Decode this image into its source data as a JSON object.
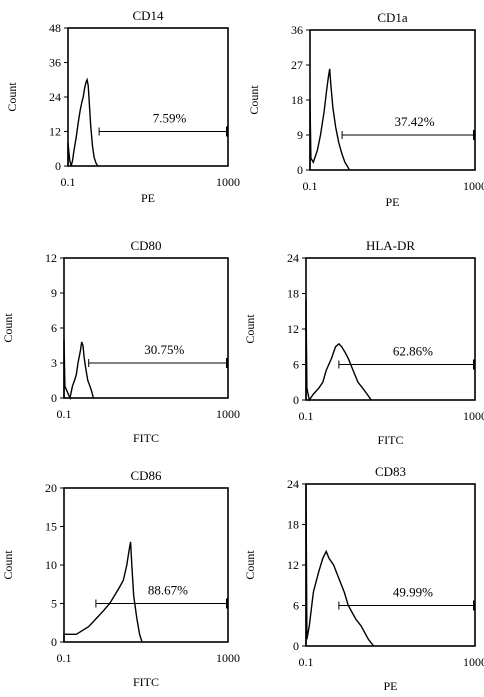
{
  "chart_data": [
    {
      "type": "histogram",
      "title": "CD14",
      "xlabel": "PE",
      "ylabel": "Count",
      "xscale": "log",
      "xlim": [
        0.1,
        1000
      ],
      "x_ticks": [
        "0.1",
        "1000"
      ],
      "ylim": [
        0,
        48
      ],
      "y_ticks": [
        "0",
        "12",
        "24",
        "36",
        "48"
      ],
      "gate": {
        "label": "7.59%",
        "from": 0.6,
        "to": 1000,
        "y": 12
      },
      "histogram": [
        [
          0.1,
          0
        ],
        [
          0.1,
          8
        ],
        [
          0.11,
          2
        ],
        [
          0.12,
          0
        ],
        [
          0.13,
          2
        ],
        [
          0.14,
          5
        ],
        [
          0.16,
          10
        ],
        [
          0.18,
          15
        ],
        [
          0.2,
          19
        ],
        [
          0.22,
          22
        ],
        [
          0.24,
          24
        ],
        [
          0.26,
          27
        ],
        [
          0.28,
          29
        ],
        [
          0.3,
          30
        ],
        [
          0.32,
          28
        ],
        [
          0.34,
          22
        ],
        [
          0.37,
          14
        ],
        [
          0.41,
          7
        ],
        [
          0.45,
          3
        ],
        [
          0.5,
          1
        ],
        [
          0.56,
          0
        ]
      ]
    },
    {
      "type": "histogram",
      "title": "CD1a",
      "xlabel": "PE",
      "ylabel": "Count",
      "xscale": "log",
      "xlim": [
        0.1,
        1000
      ],
      "x_ticks": [
        "0.1",
        "1000"
      ],
      "ylim": [
        0,
        36
      ],
      "y_ticks": [
        "0",
        "9",
        "18",
        "27",
        "36"
      ],
      "gate": {
        "label": "37.42%",
        "from": 0.6,
        "to": 1000,
        "y": 9
      },
      "histogram": [
        [
          0.1,
          0
        ],
        [
          0.1,
          18
        ],
        [
          0.105,
          3
        ],
        [
          0.12,
          2
        ],
        [
          0.15,
          5
        ],
        [
          0.18,
          9
        ],
        [
          0.22,
          15
        ],
        [
          0.25,
          20
        ],
        [
          0.28,
          24
        ],
        [
          0.3,
          26
        ],
        [
          0.32,
          22
        ],
        [
          0.36,
          16
        ],
        [
          0.42,
          11
        ],
        [
          0.5,
          7
        ],
        [
          0.6,
          4
        ],
        [
          0.7,
          2
        ],
        [
          0.8,
          1
        ],
        [
          0.9,
          0
        ]
      ]
    },
    {
      "type": "histogram",
      "title": "CD80",
      "xlabel": "FITC",
      "ylabel": "Count",
      "xscale": "log",
      "xlim": [
        0.1,
        1000
      ],
      "x_ticks": [
        "0.1",
        "1000"
      ],
      "ylim": [
        0,
        12
      ],
      "y_ticks": [
        "0",
        "3",
        "6",
        "9",
        "12"
      ],
      "gate": {
        "label": "30.75%",
        "from": 0.4,
        "to": 1000,
        "y": 3
      },
      "histogram": [
        [
          0.1,
          0
        ],
        [
          0.1,
          5
        ],
        [
          0.105,
          1
        ],
        [
          0.14,
          0
        ],
        [
          0.16,
          1
        ],
        [
          0.18,
          1.5
        ],
        [
          0.2,
          2
        ],
        [
          0.22,
          3
        ],
        [
          0.25,
          4
        ],
        [
          0.27,
          4.8
        ],
        [
          0.29,
          4.5
        ],
        [
          0.31,
          3.5
        ],
        [
          0.34,
          2.5
        ],
        [
          0.38,
          1.5
        ],
        [
          0.43,
          1
        ],
        [
          0.48,
          0.5
        ],
        [
          0.52,
          0
        ]
      ]
    },
    {
      "type": "histogram",
      "title": "HLA-DR",
      "xlabel": "FITC",
      "ylabel": "Count",
      "xscale": "log",
      "xlim": [
        0.1,
        1000
      ],
      "x_ticks": [
        "0.1",
        "1000"
      ],
      "ylim": [
        0,
        24
      ],
      "y_ticks": [
        "0",
        "6",
        "12",
        "18",
        "24"
      ],
      "gate": {
        "label": "62.86%",
        "from": 0.6,
        "to": 1000,
        "y": 6
      },
      "histogram": [
        [
          0.1,
          0
        ],
        [
          0.1,
          17
        ],
        [
          0.105,
          2
        ],
        [
          0.12,
          0
        ],
        [
          0.15,
          1
        ],
        [
          0.2,
          2
        ],
        [
          0.25,
          3
        ],
        [
          0.3,
          5
        ],
        [
          0.4,
          7
        ],
        [
          0.5,
          9
        ],
        [
          0.6,
          9.5
        ],
        [
          0.7,
          9
        ],
        [
          0.85,
          8
        ],
        [
          1,
          7
        ],
        [
          1.3,
          5
        ],
        [
          1.7,
          3
        ],
        [
          2.2,
          2
        ],
        [
          2.8,
          1
        ],
        [
          3.5,
          0
        ]
      ]
    },
    {
      "type": "histogram",
      "title": "CD86",
      "xlabel": "FITC",
      "ylabel": "Count",
      "xscale": "log",
      "xlim": [
        0.1,
        1000
      ],
      "x_ticks": [
        "0.1",
        "1000"
      ],
      "ylim": [
        0,
        20
      ],
      "y_ticks": [
        "0",
        "5",
        "10",
        "15",
        "20"
      ],
      "gate": {
        "label": "88.67%",
        "from": 0.6,
        "to": 1000,
        "y": 5
      },
      "histogram": [
        [
          0.1,
          0
        ],
        [
          0.1,
          1
        ],
        [
          0.2,
          1
        ],
        [
          0.4,
          2
        ],
        [
          0.6,
          3
        ],
        [
          0.9,
          4
        ],
        [
          1.3,
          5
        ],
        [
          1.7,
          6
        ],
        [
          2.2,
          7
        ],
        [
          2.8,
          8
        ],
        [
          3.4,
          10
        ],
        [
          3.9,
          12
        ],
        [
          4.2,
          13
        ],
        [
          4.5,
          10
        ],
        [
          5,
          6
        ],
        [
          6,
          3
        ],
        [
          7,
          1
        ],
        [
          8,
          0
        ]
      ]
    },
    {
      "type": "histogram",
      "title": "CD83",
      "xlabel": "PE",
      "ylabel": "Count",
      "xscale": "log",
      "xlim": [
        0.1,
        1000
      ],
      "x_ticks": [
        "0.1",
        "1000"
      ],
      "ylim": [
        0,
        24
      ],
      "y_ticks": [
        "0",
        "6",
        "12",
        "18",
        "24"
      ],
      "gate": {
        "label": "49.99%",
        "from": 0.6,
        "to": 1000,
        "y": 6
      },
      "histogram": [
        [
          0.1,
          0
        ],
        [
          0.1,
          24
        ],
        [
          0.105,
          1
        ],
        [
          0.12,
          3
        ],
        [
          0.15,
          8
        ],
        [
          0.2,
          11
        ],
        [
          0.25,
          13
        ],
        [
          0.3,
          14
        ],
        [
          0.35,
          13
        ],
        [
          0.45,
          12
        ],
        [
          0.6,
          10
        ],
        [
          0.8,
          8
        ],
        [
          1,
          6
        ],
        [
          1.5,
          4
        ],
        [
          2,
          3
        ],
        [
          3,
          1
        ],
        [
          4,
          0
        ]
      ]
    }
  ]
}
